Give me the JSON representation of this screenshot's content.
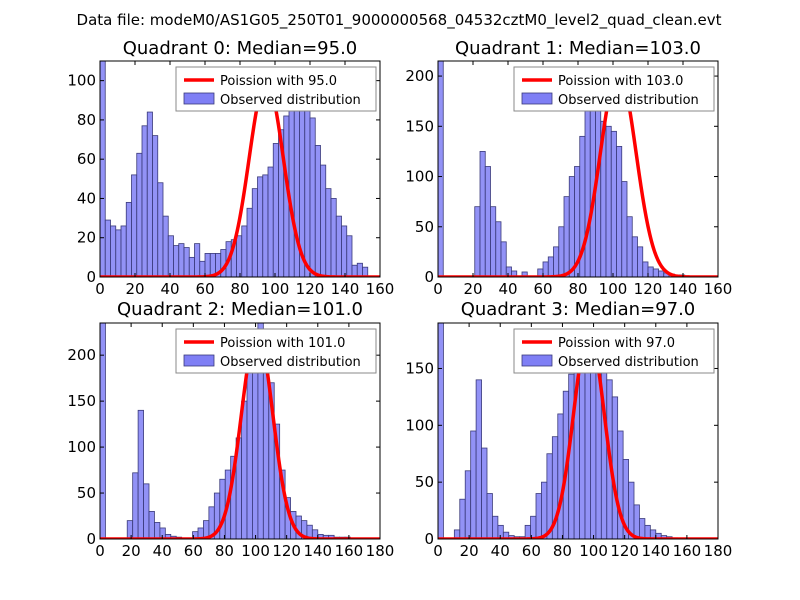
{
  "figure_title": "Data file: modeM0/AS1G05_250T01_9000000568_04532cztM0_level2_quad_clean.evt",
  "colors": {
    "poisson": "#ff0000",
    "histogram_fill": "#7f7ff5",
    "histogram_edge": "#3a3a7a",
    "axes": "#000000",
    "legend_edge": "#8a8a8a"
  },
  "chart_data": [
    {
      "type": "bar",
      "title": "Quadrant 0: Median=95.0",
      "xlim": [
        0,
        160
      ],
      "ylim": [
        0,
        110
      ],
      "xticks": [
        0,
        20,
        40,
        60,
        80,
        100,
        120,
        140,
        160
      ],
      "xtick_labels": [
        "0",
        "20",
        "40",
        "60",
        "80",
        "100",
        "120",
        "140",
        "160"
      ],
      "yticks": [
        0,
        20,
        40,
        60,
        80,
        100
      ],
      "ytick_labels": [
        "0",
        "20",
        "40",
        "60",
        "80",
        "100"
      ],
      "legend": [
        "Poission with 95.0",
        "Observed distribution"
      ],
      "legend_position": "top-right",
      "poisson_mean": 95.0,
      "poisson_peak": 100,
      "bin_width": 3,
      "bins": [
        [
          0,
          110
        ],
        [
          3,
          29
        ],
        [
          6,
          26
        ],
        [
          9,
          24
        ],
        [
          12,
          26
        ],
        [
          15,
          38
        ],
        [
          18,
          52
        ],
        [
          21,
          63
        ],
        [
          24,
          77
        ],
        [
          27,
          84
        ],
        [
          30,
          72
        ],
        [
          33,
          48
        ],
        [
          36,
          31
        ],
        [
          39,
          21
        ],
        [
          42,
          16
        ],
        [
          45,
          17
        ],
        [
          48,
          15
        ],
        [
          51,
          10
        ],
        [
          54,
          17
        ],
        [
          57,
          8
        ],
        [
          60,
          12
        ],
        [
          63,
          12
        ],
        [
          66,
          12
        ],
        [
          69,
          14
        ],
        [
          72,
          18
        ],
        [
          75,
          19
        ],
        [
          78,
          21
        ],
        [
          81,
          26
        ],
        [
          84,
          35
        ],
        [
          87,
          45
        ],
        [
          90,
          51
        ],
        [
          93,
          52
        ],
        [
          96,
          56
        ],
        [
          99,
          68
        ],
        [
          102,
          75
        ],
        [
          105,
          82
        ],
        [
          108,
          90
        ],
        [
          111,
          97
        ],
        [
          114,
          104
        ],
        [
          117,
          95
        ],
        [
          120,
          81
        ],
        [
          123,
          67
        ],
        [
          126,
          57
        ],
        [
          129,
          45
        ],
        [
          132,
          40
        ],
        [
          135,
          31
        ],
        [
          138,
          26
        ],
        [
          141,
          21
        ],
        [
          144,
          6
        ],
        [
          147,
          7
        ],
        [
          150,
          5
        ]
      ]
    },
    {
      "type": "bar",
      "title": "Quadrant 1: Median=103.0",
      "xlim": [
        0,
        160
      ],
      "ylim": [
        0,
        215
      ],
      "xticks": [
        0,
        20,
        40,
        60,
        80,
        100,
        120,
        140,
        160
      ],
      "xtick_labels": [
        "0",
        "20",
        "40",
        "60",
        "80",
        "100",
        "120",
        "140",
        "160"
      ],
      "yticks": [
        0,
        50,
        100,
        150,
        200
      ],
      "ytick_labels": [
        "0",
        "50",
        "100",
        "150",
        "200"
      ],
      "legend": [
        "Poission with 103.0",
        "Observed distribution"
      ],
      "legend_position": "top-right",
      "poisson_mean": 103.0,
      "poisson_peak": 205,
      "bin_width": 3,
      "bins": [
        [
          0,
          215
        ],
        [
          21,
          70
        ],
        [
          24,
          125
        ],
        [
          27,
          110
        ],
        [
          30,
          70
        ],
        [
          33,
          55
        ],
        [
          36,
          35
        ],
        [
          39,
          10
        ],
        [
          42,
          6
        ],
        [
          48,
          5
        ],
        [
          57,
          8
        ],
        [
          60,
          15
        ],
        [
          63,
          20
        ],
        [
          66,
          30
        ],
        [
          69,
          50
        ],
        [
          72,
          80
        ],
        [
          75,
          100
        ],
        [
          78,
          110
        ],
        [
          81,
          140
        ],
        [
          84,
          180
        ],
        [
          87,
          190
        ],
        [
          90,
          170
        ],
        [
          93,
          155
        ],
        [
          96,
          150
        ],
        [
          99,
          145
        ],
        [
          102,
          130
        ],
        [
          105,
          95
        ],
        [
          108,
          60
        ],
        [
          111,
          40
        ],
        [
          114,
          30
        ],
        [
          117,
          15
        ],
        [
          120,
          10
        ],
        [
          123,
          8
        ],
        [
          126,
          6
        ],
        [
          129,
          4
        ],
        [
          132,
          3
        ],
        [
          135,
          2
        ],
        [
          138,
          2
        ]
      ]
    },
    {
      "type": "bar",
      "title": "Quadrant 2: Median=101.0",
      "xlim": [
        0,
        180
      ],
      "ylim": [
        0,
        235
      ],
      "xticks": [
        0,
        20,
        40,
        60,
        80,
        100,
        120,
        140,
        160,
        180
      ],
      "xtick_labels": [
        "0",
        "20",
        "40",
        "60",
        "80",
        "100",
        "120",
        "140",
        "160",
        "180"
      ],
      "yticks": [
        0,
        50,
        100,
        150,
        200
      ],
      "ytick_labels": [
        "0",
        "50",
        "100",
        "150",
        "200"
      ],
      "legend": [
        "Poission with 101.0",
        "Observed distribution"
      ],
      "legend_position": "top-right",
      "poisson_mean": 101.0,
      "poisson_peak": 225,
      "bin_width": 3.5,
      "bins": [
        [
          0,
          235
        ],
        [
          17.5,
          20
        ],
        [
          21,
          72
        ],
        [
          24.5,
          140
        ],
        [
          28,
          60
        ],
        [
          31.5,
          30
        ],
        [
          35,
          18
        ],
        [
          38.5,
          12
        ],
        [
          42,
          5
        ],
        [
          45.5,
          3
        ],
        [
          49,
          2
        ],
        [
          59.5,
          8
        ],
        [
          63,
          12
        ],
        [
          66.5,
          20
        ],
        [
          70,
          35
        ],
        [
          73.5,
          50
        ],
        [
          77,
          65
        ],
        [
          80.5,
          75
        ],
        [
          84,
          90
        ],
        [
          87.5,
          110
        ],
        [
          91,
          150
        ],
        [
          94.5,
          195
        ],
        [
          98,
          205
        ],
        [
          101.5,
          235
        ],
        [
          105,
          215
        ],
        [
          108.5,
          170
        ],
        [
          112,
          125
        ],
        [
          115.5,
          75
        ],
        [
          119,
          45
        ],
        [
          122.5,
          30
        ],
        [
          126,
          25
        ],
        [
          129.5,
          20
        ],
        [
          133,
          15
        ],
        [
          136.5,
          10
        ],
        [
          140,
          5
        ],
        [
          143.5,
          4
        ],
        [
          147,
          4
        ],
        [
          150.5,
          2
        ],
        [
          154,
          2
        ],
        [
          157.5,
          2
        ]
      ]
    },
    {
      "type": "bar",
      "title": "Quadrant 3: Median=97.0",
      "xlim": [
        0,
        180
      ],
      "ylim": [
        0,
        190
      ],
      "xticks": [
        0,
        20,
        40,
        60,
        80,
        100,
        120,
        140,
        160,
        180
      ],
      "xtick_labels": [
        "0",
        "20",
        "40",
        "60",
        "80",
        "100",
        "120",
        "140",
        "160",
        "180"
      ],
      "yticks": [
        0,
        50,
        100,
        150
      ],
      "ytick_labels": [
        "0",
        "50",
        "100",
        "150"
      ],
      "legend": [
        "Poission with 97.0",
        "Observed distribution"
      ],
      "legend_position": "top-right",
      "poisson_mean": 97.0,
      "poisson_peak": 182,
      "bin_width": 3.5,
      "bins": [
        [
          0,
          190
        ],
        [
          10.5,
          8
        ],
        [
          14,
          35
        ],
        [
          17.5,
          60
        ],
        [
          21,
          95
        ],
        [
          24.5,
          140
        ],
        [
          28,
          80
        ],
        [
          31.5,
          40
        ],
        [
          35,
          20
        ],
        [
          38.5,
          12
        ],
        [
          42,
          6
        ],
        [
          45.5,
          3
        ],
        [
          49,
          2
        ],
        [
          52.5,
          2
        ],
        [
          56,
          12
        ],
        [
          59.5,
          20
        ],
        [
          63,
          40
        ],
        [
          66.5,
          50
        ],
        [
          70,
          75
        ],
        [
          73.5,
          90
        ],
        [
          77,
          110
        ],
        [
          80.5,
          130
        ],
        [
          84,
          145
        ],
        [
          87.5,
          160
        ],
        [
          91,
          180
        ],
        [
          94.5,
          180
        ],
        [
          98,
          165
        ],
        [
          101.5,
          150
        ],
        [
          105,
          155
        ],
        [
          108.5,
          140
        ],
        [
          112,
          125
        ],
        [
          115.5,
          95
        ],
        [
          119,
          70
        ],
        [
          122.5,
          50
        ],
        [
          126,
          30
        ],
        [
          129.5,
          18
        ],
        [
          133,
          12
        ],
        [
          136.5,
          8
        ],
        [
          140,
          5
        ],
        [
          143.5,
          3
        ],
        [
          147,
          2
        ],
        [
          150.5,
          1
        ]
      ]
    }
  ]
}
